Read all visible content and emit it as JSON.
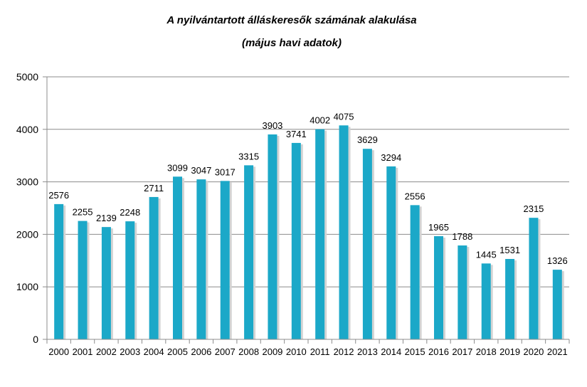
{
  "chart_data": {
    "type": "bar",
    "title": "A nyilvántartott álláskeresők számának alakulása",
    "subtitle": "(május havi adatok)",
    "categories": [
      "2000",
      "2001",
      "2002",
      "2003",
      "2004",
      "2005",
      "2006",
      "2007",
      "2008",
      "2009",
      "2010",
      "2011",
      "2012",
      "2013",
      "2014",
      "2015",
      "2016",
      "2017",
      "2018",
      "2019",
      "2020",
      "2021"
    ],
    "values": [
      2576,
      2255,
      2139,
      2248,
      2711,
      3099,
      3047,
      3017,
      3315,
      3903,
      3741,
      4002,
      4075,
      3629,
      3294,
      2556,
      1965,
      1788,
      1445,
      1531,
      2315,
      1326
    ],
    "data_labels": [
      "2576",
      "2255",
      "2139",
      "2248",
      "2711",
      "3099",
      "3047",
      "3017",
      "3315",
      "3903",
      "3741",
      "4002",
      "4075",
      "3629",
      "3294",
      "2556",
      "1965",
      "1788",
      "1445",
      "1531",
      "2315",
      "1326"
    ],
    "ylim": [
      0,
      5000
    ],
    "yticks": [
      "0",
      "1000",
      "2000",
      "3000",
      "4000",
      "5000"
    ],
    "grid": true,
    "legend": "none",
    "colors": {
      "bar": "#1BA8C8",
      "bar_shadow": "#D3D3D3",
      "grid": "#8C8C8C",
      "axis": "#8C8C8C"
    }
  }
}
